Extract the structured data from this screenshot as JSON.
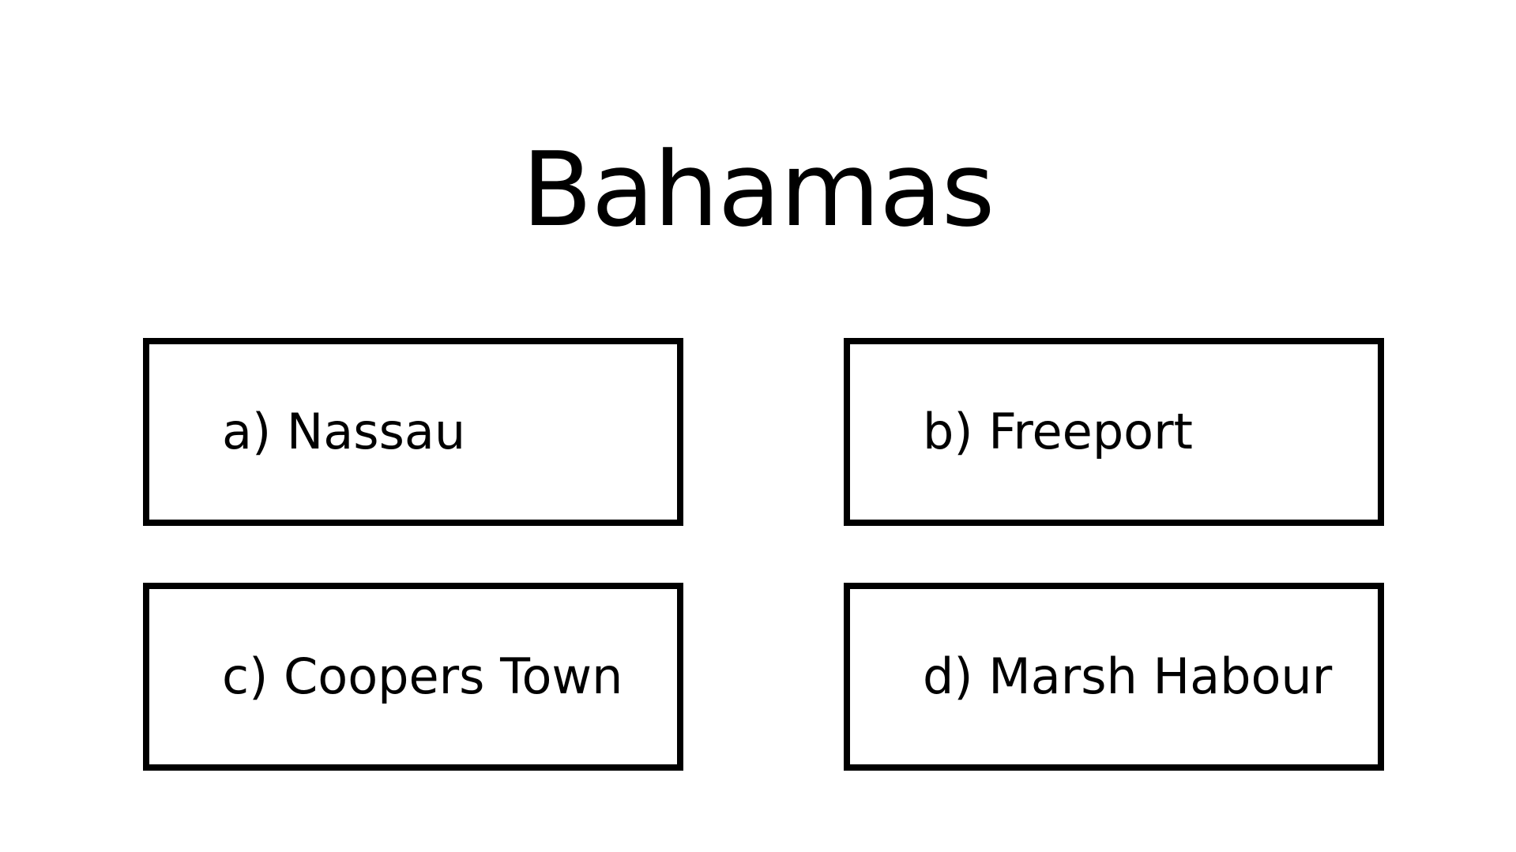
{
  "question": {
    "title": "Bahamas"
  },
  "options": [
    {
      "label": "a) Nassau"
    },
    {
      "label": "b) Freeport"
    },
    {
      "label": "c) Coopers Town"
    },
    {
      "label": "d) Marsh Habour"
    }
  ]
}
